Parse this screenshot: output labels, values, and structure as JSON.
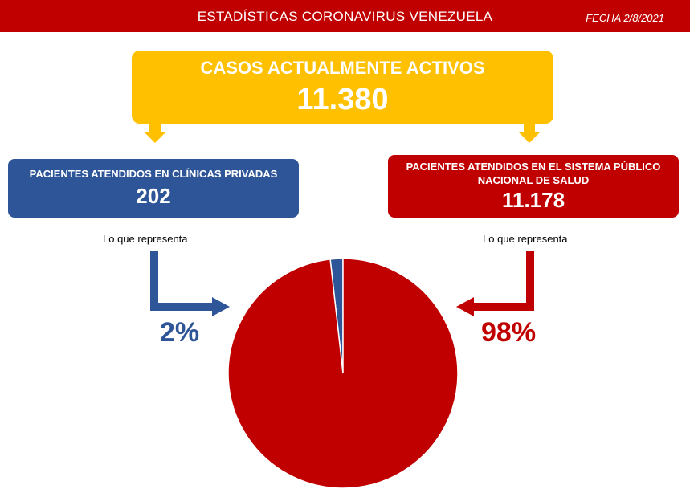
{
  "header": {
    "title": "ESTADÍSTICAS CORONAVIRUS VENEZUELA",
    "date": "FECHA 2/8/2021"
  },
  "active_cases": {
    "label": "CASOS ACTUALMENTE ACTIVOS",
    "value": "11.380"
  },
  "private_clinics": {
    "label": "PACIENTES ATENDIDOS EN CLÍNICAS PRIVADAS",
    "value": "202",
    "represent_label": "Lo que representa",
    "percent_label": "2%"
  },
  "public_system": {
    "label": "PACIENTES ATENDIDOS EN EL SISTEMA PÚBLICO NACIONAL DE SALUD",
    "value": "11.178",
    "represent_label": "Lo que representa",
    "percent_label": "98%"
  },
  "colors": {
    "red": "#c00000",
    "blue": "#2e5597",
    "yellow": "#ffc000"
  },
  "chart_data": {
    "type": "pie",
    "title": "",
    "slices": [
      {
        "label": "PACIENTES ATENDIDOS EN CLÍNICAS PRIVADAS",
        "value": 202,
        "percent": 2,
        "color": "#2e5597"
      },
      {
        "label": "PACIENTES ATENDIDOS EN EL SISTEMA PÚBLICO NACIONAL DE SALUD",
        "value": 11178,
        "percent": 98,
        "color": "#c00000"
      }
    ]
  }
}
